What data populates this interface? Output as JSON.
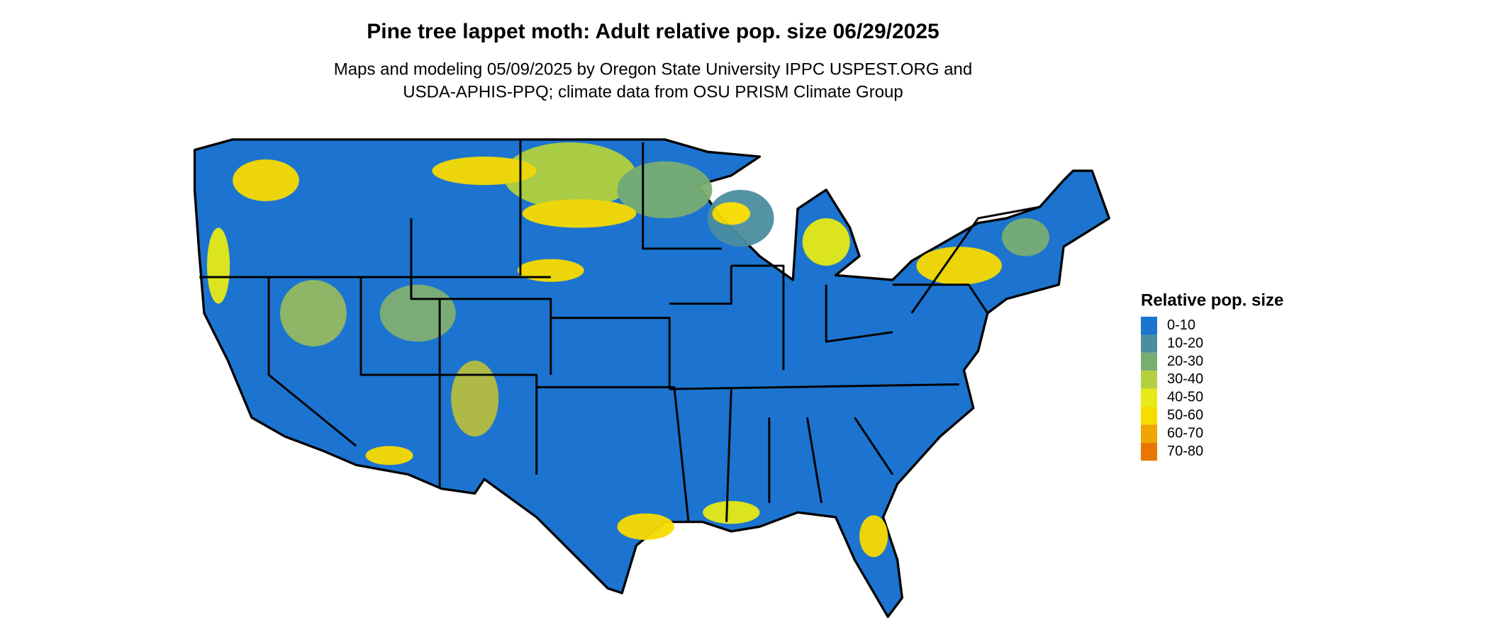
{
  "map": {
    "title": "Pine tree lappet moth: Adult relative pop. size 06/29/2025",
    "subtitle": [
      "Maps and modeling 05/09/2025 by Oregon State University IPPC USPEST.ORG and",
      "USDA-APHIS-PPQ; climate data from OSU PRISM Climate Group"
    ],
    "legend": {
      "title": "Relative pop. size",
      "items": [
        {
          "label": "0-10",
          "color": "#1c74d0"
        },
        {
          "label": "10-20",
          "color": "#4a8ea0"
        },
        {
          "label": "20-30",
          "color": "#7aad72"
        },
        {
          "label": "30-40",
          "color": "#b3d13e"
        },
        {
          "label": "40-50",
          "color": "#e6ea16"
        },
        {
          "label": "50-60",
          "color": "#f8dc00"
        },
        {
          "label": "60-70",
          "color": "#f0a600"
        },
        {
          "label": "70-80",
          "color": "#e87600"
        }
      ]
    }
  }
}
